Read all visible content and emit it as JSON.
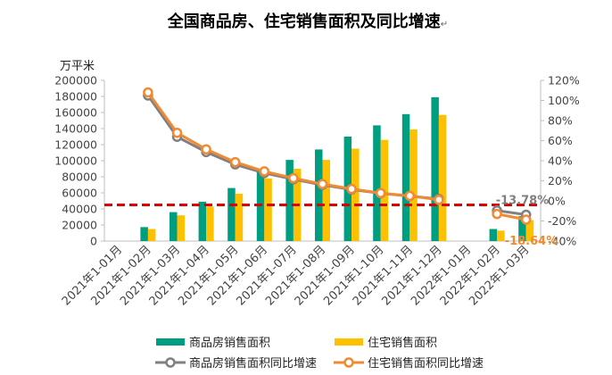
{
  "chart_data": {
    "type": "bar",
    "title": "全国商品房、住宅销售面积及同比增速",
    "title_mark": "↵",
    "ylabel": "万平米",
    "ylim": [
      0,
      200000
    ],
    "y_ticks": [
      "200000",
      "180000",
      "160000",
      "140000",
      "120000",
      "100000",
      "80000",
      "60000",
      "40000",
      "20000",
      "0"
    ],
    "y2lim": [
      -40,
      120
    ],
    "y2_ticks": [
      "120%",
      "100%",
      "80%",
      "60%",
      "40%",
      "20%",
      "0%",
      "-20%",
      "-40%"
    ],
    "categories": [
      "2021年1-01月",
      "2021年1-02月",
      "2021年1-03月",
      "2021年1-04月",
      "2021年1-05月",
      "2021年1-06月",
      "2021年1-07月",
      "2021年1-08月",
      "2021年1-09月",
      "2021年1-10月",
      "2021年1-11月",
      "2021年1-12月",
      "2022年1-01月",
      "2022年1-02月",
      "2022年1-03月"
    ],
    "series": [
      {
        "name": "商品房销售面积",
        "kind": "bar",
        "axis": "left",
        "color": "#009e80",
        "values": [
          null,
          17400,
          36000,
          49000,
          66000,
          88000,
          101000,
          114000,
          130000,
          144000,
          158000,
          179000,
          null,
          15000,
          31000
        ]
      },
      {
        "name": "住宅销售面积",
        "kind": "bar",
        "axis": "left",
        "color": "#ffc000",
        "values": [
          null,
          15000,
          32000,
          43000,
          59000,
          78000,
          90000,
          101000,
          115000,
          126000,
          139000,
          157000,
          null,
          13000,
          26000
        ]
      },
      {
        "name": "商品房销售面积同比增速",
        "kind": "line",
        "axis": "right",
        "color": "#808080",
        "values": [
          null,
          104.9,
          63.8,
          48.6,
          36.3,
          27.7,
          21.5,
          15.9,
          11.3,
          7.5,
          4.8,
          1.9,
          null,
          -9.6,
          -13.78
        ]
      },
      {
        "name": "住宅销售面积同比增速",
        "kind": "line",
        "axis": "right",
        "color": "#f08a33",
        "values": [
          null,
          108.0,
          67.8,
          51.3,
          38.6,
          29.4,
          22.6,
          16.8,
          11.9,
          7.8,
          5.0,
          1.1,
          null,
          -13.0,
          -18.64
        ]
      }
    ],
    "annotations": {
      "gray_last": "-13.78%",
      "orange_last": "-18.64%"
    },
    "reference_line": {
      "axis": "right",
      "value": -4,
      "color": "#e00000",
      "style": "dashed"
    },
    "legend_position": "bottom"
  }
}
